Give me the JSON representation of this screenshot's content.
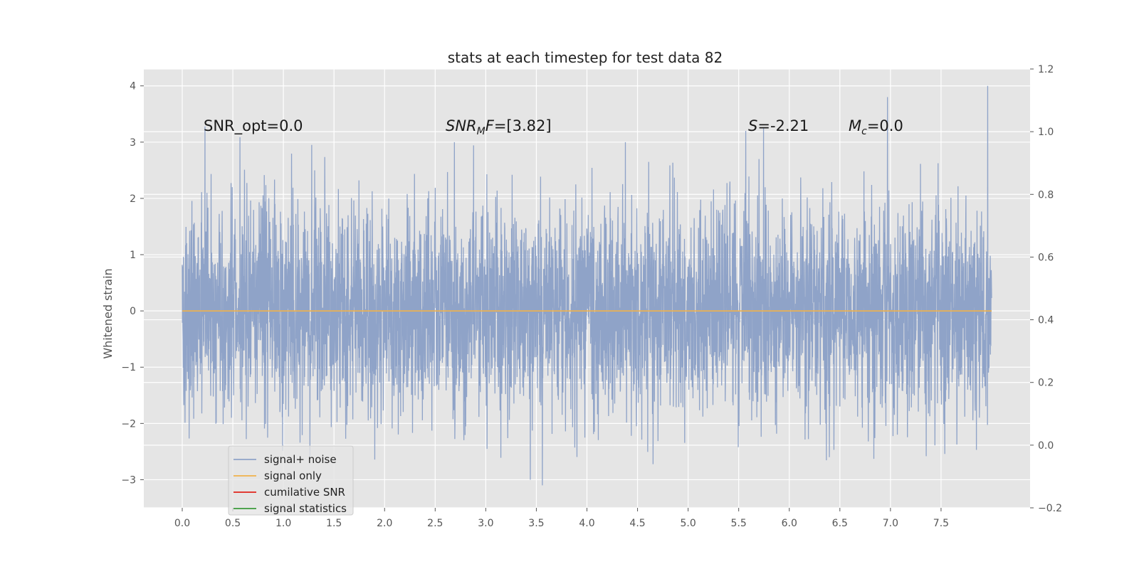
{
  "chart_data": {
    "type": "line",
    "title": "stats at each timestep for test data 82",
    "ylabel": "Whitened strain",
    "xlabel": "",
    "xlim": [
      -0.38,
      8.38
    ],
    "ylim": [
      -3.5,
      4.3
    ],
    "y2lim": [
      -0.2,
      1.2
    ],
    "x_ticks": [
      "0.0",
      "0.5",
      "1.0",
      "1.5",
      "2.0",
      "2.5",
      "3.0",
      "3.5",
      "4.0",
      "4.5",
      "5.0",
      "5.5",
      "6.0",
      "6.5",
      "7.0",
      "7.5"
    ],
    "y_ticks": [
      "4",
      "3",
      "2",
      "1",
      "0",
      "−1",
      "−2",
      "−3"
    ],
    "y2_ticks": [
      "1.2",
      "1.0",
      "0.8",
      "0.6",
      "0.4",
      "0.2",
      "0.0",
      "−0.2"
    ],
    "grid": true,
    "annotations": {
      "snr_opt": "SNR_opt=0.0",
      "snr_mf_sym": "SNR",
      "snr_mf_sub": "M",
      "snr_mf_sym2": "F",
      "snr_mf_val": "=[3.82]",
      "s_sym": "S",
      "s_val": "=-2.21",
      "mc_sym": "M",
      "mc_sub": "c",
      "mc_val": "=0.0"
    },
    "legend": {
      "position": "lower-left",
      "entries": [
        {
          "label": "signal+ noise",
          "color": "#8fa3c8"
        },
        {
          "label": "signal only",
          "color": "#f0b14a"
        },
        {
          "label": "cumilative SNR",
          "color": "#e0241b"
        },
        {
          "label": "signal statistics",
          "color": "#3a9a3a"
        }
      ]
    },
    "series": [
      {
        "name": "signal+ noise",
        "color": "#8fa3c8",
        "x_range": [
          0.0,
          8.0
        ],
        "samples": 4096,
        "distribution": "gaussian",
        "mean": 0.0,
        "std": 0.95,
        "y_min": -3.1,
        "y_max": 4.0,
        "peaks": [
          {
            "x": 7.96,
            "y": 4.0
          },
          {
            "x": 6.97,
            "y": 3.8
          },
          {
            "x": 5.57,
            "y": 3.2
          },
          {
            "x": 4.38,
            "y": 3.0
          },
          {
            "x": 2.69,
            "y": 3.0
          },
          {
            "x": 1.28,
            "y": 2.95
          },
          {
            "x": 3.56,
            "y": -3.1
          },
          {
            "x": 3.44,
            "y": -3.0
          }
        ]
      },
      {
        "name": "signal only",
        "color": "#f0b14a",
        "x": [
          0.0,
          8.0
        ],
        "y": [
          0.0,
          0.0
        ]
      }
    ]
  }
}
